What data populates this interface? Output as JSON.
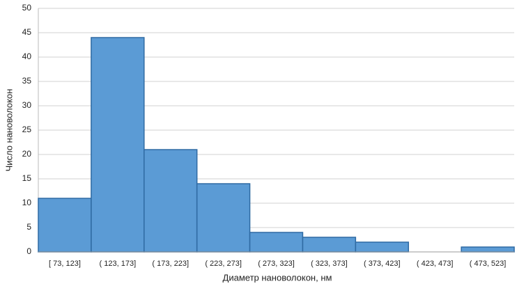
{
  "chart_data": {
    "type": "bar",
    "x_label": "Диаметр нановолокон, нм",
    "y_label": "Число нановолокон",
    "categories": [
      "[ 73,  123]",
      "( 123,  173]",
      "( 173,  223]",
      "( 223,  273]",
      "( 273,  323]",
      "( 323,  373]",
      "( 373,  423]",
      "( 423,  473]",
      "( 473,  523]"
    ],
    "values": [
      11,
      44,
      21,
      14,
      4,
      3,
      2,
      0,
      1
    ],
    "color": "#5b9bd5",
    "ylim": [
      0,
      50
    ],
    "yticks": [
      0,
      5,
      10,
      15,
      20,
      25,
      30,
      35,
      40,
      45,
      50
    ],
    "grid": true
  }
}
